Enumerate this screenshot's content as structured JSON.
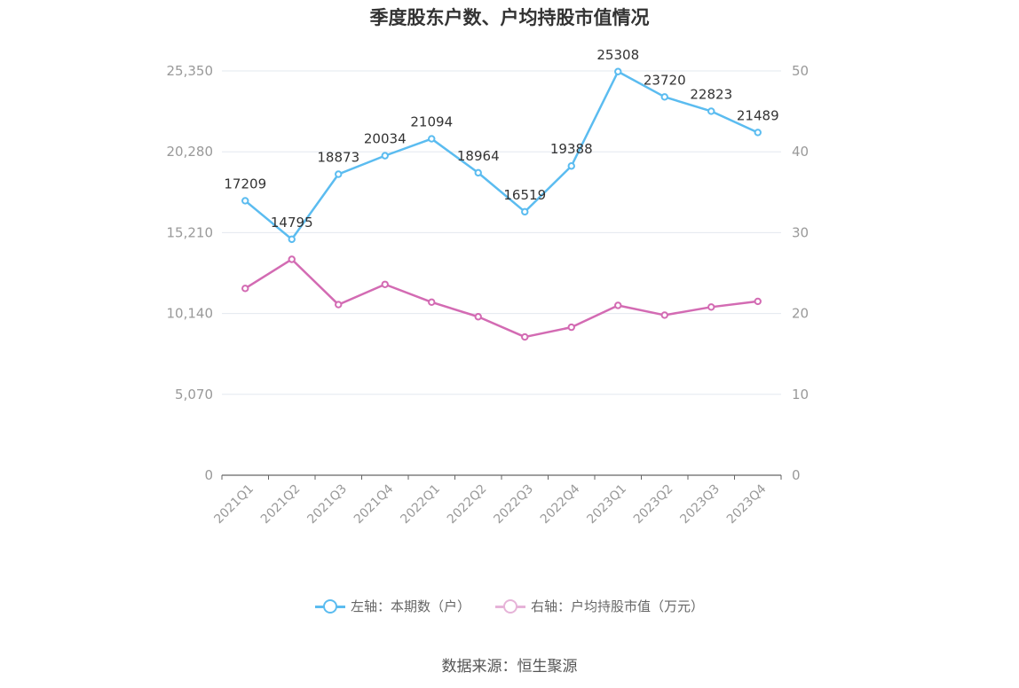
{
  "chart_data": {
    "type": "line",
    "title": "季度股东户数、户均持股市值情况",
    "categories": [
      "2021Q1",
      "2021Q2",
      "2021Q3",
      "2021Q4",
      "2022Q1",
      "2022Q2",
      "2022Q3",
      "2022Q4",
      "2023Q1",
      "2023Q2",
      "2023Q3",
      "2023Q4"
    ],
    "left_axis": {
      "ticks": [
        "0",
        "5,070",
        "10,140",
        "15,210",
        "20,280",
        "25,350"
      ],
      "range": [
        0,
        25350
      ]
    },
    "right_axis": {
      "ticks": [
        "0",
        "10",
        "20",
        "30",
        "40",
        "50"
      ],
      "range": [
        0,
        50
      ]
    },
    "grid": true,
    "legend_position": "bottom",
    "series": [
      {
        "name": "左轴：本期数（户）",
        "axis": "left",
        "color": "#5bbcf0",
        "values": [
          17209,
          14795,
          18873,
          20034,
          21094,
          18964,
          16519,
          19388,
          25308,
          23720,
          22823,
          21489
        ],
        "labels": [
          "17209",
          "14795",
          "18873",
          "20034",
          "21094",
          "18964",
          "16519",
          "19388",
          "25308",
          "23720",
          "22823",
          "21489"
        ]
      },
      {
        "name": "右轴：户均持股市值（万元）",
        "axis": "right",
        "color": "#d36bb3",
        "values": [
          23.1,
          26.7,
          21.1,
          23.6,
          21.4,
          19.6,
          17.1,
          18.3,
          21.0,
          19.8,
          20.8,
          21.5
        ]
      }
    ],
    "source": "数据来源：恒生聚源"
  }
}
